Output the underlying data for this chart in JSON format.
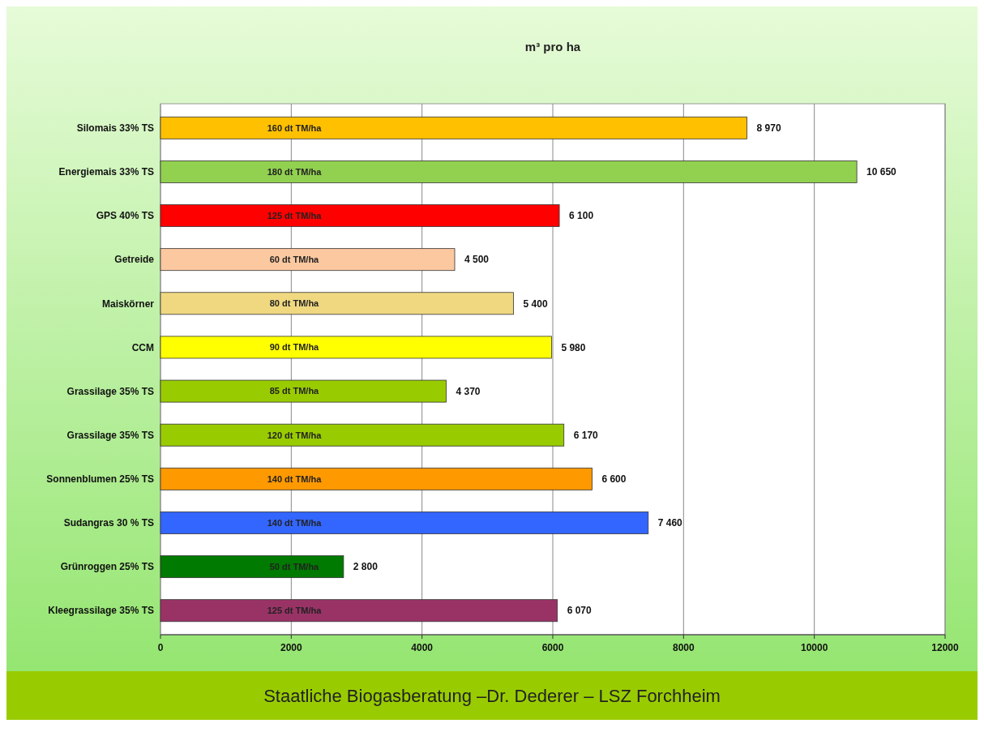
{
  "chart_data": {
    "type": "bar",
    "orientation": "horizontal",
    "title": "m³ pro ha",
    "categories": [
      "Silomais 33% TS",
      "Energiemais 33% TS",
      "GPS 40% TS",
      "Getreide",
      "Maiskörner",
      "CCM",
      "Grassilage 35% TS",
      "Grassilage 35% TS",
      "Sonnenblumen 25% TS",
      "Sudangras 30 % TS",
      "Grünroggen 25% TS",
      "Kleegrassilage 35% TS"
    ],
    "values": [
      8970,
      10650,
      6100,
      4500,
      5400,
      5980,
      4370,
      6170,
      6600,
      7460,
      2800,
      6070
    ],
    "colors": [
      "#ffc000",
      "#92d050",
      "#ff0000",
      "#fcc8a0",
      "#f0d880",
      "#ffff00",
      "#99cc00",
      "#99cc00",
      "#ff9900",
      "#3366ff",
      "#007a00",
      "#993366"
    ],
    "value_labels": [
      "8 970",
      "10 650",
      "6 100",
      "4 500",
      "5 400",
      "5 980",
      "4 370",
      "6 170",
      "6 600",
      "7 460",
      "2 800",
      "6 070"
    ],
    "xlim": [
      0,
      12000
    ],
    "xticks": [
      0,
      2000,
      4000,
      6000,
      8000,
      10000,
      12000
    ],
    "grid": "x",
    "annotations": [
      "160 dt TM/ha",
      "180 dt TM/ha",
      "125 dt TM/ha",
      "60 dt TM/ha",
      "80 dt TM/ha",
      "90 dt TM/ha",
      "85 dt TM/ha",
      "120 dt TM/ha",
      "140 dt TM/ha",
      "140 dt TM/ha",
      "50 dt TM/ha",
      "125 dt TM/ha",
      "Staatliche Biogasberatung –Dr. Dederer – LSZ Forchheim"
    ]
  }
}
